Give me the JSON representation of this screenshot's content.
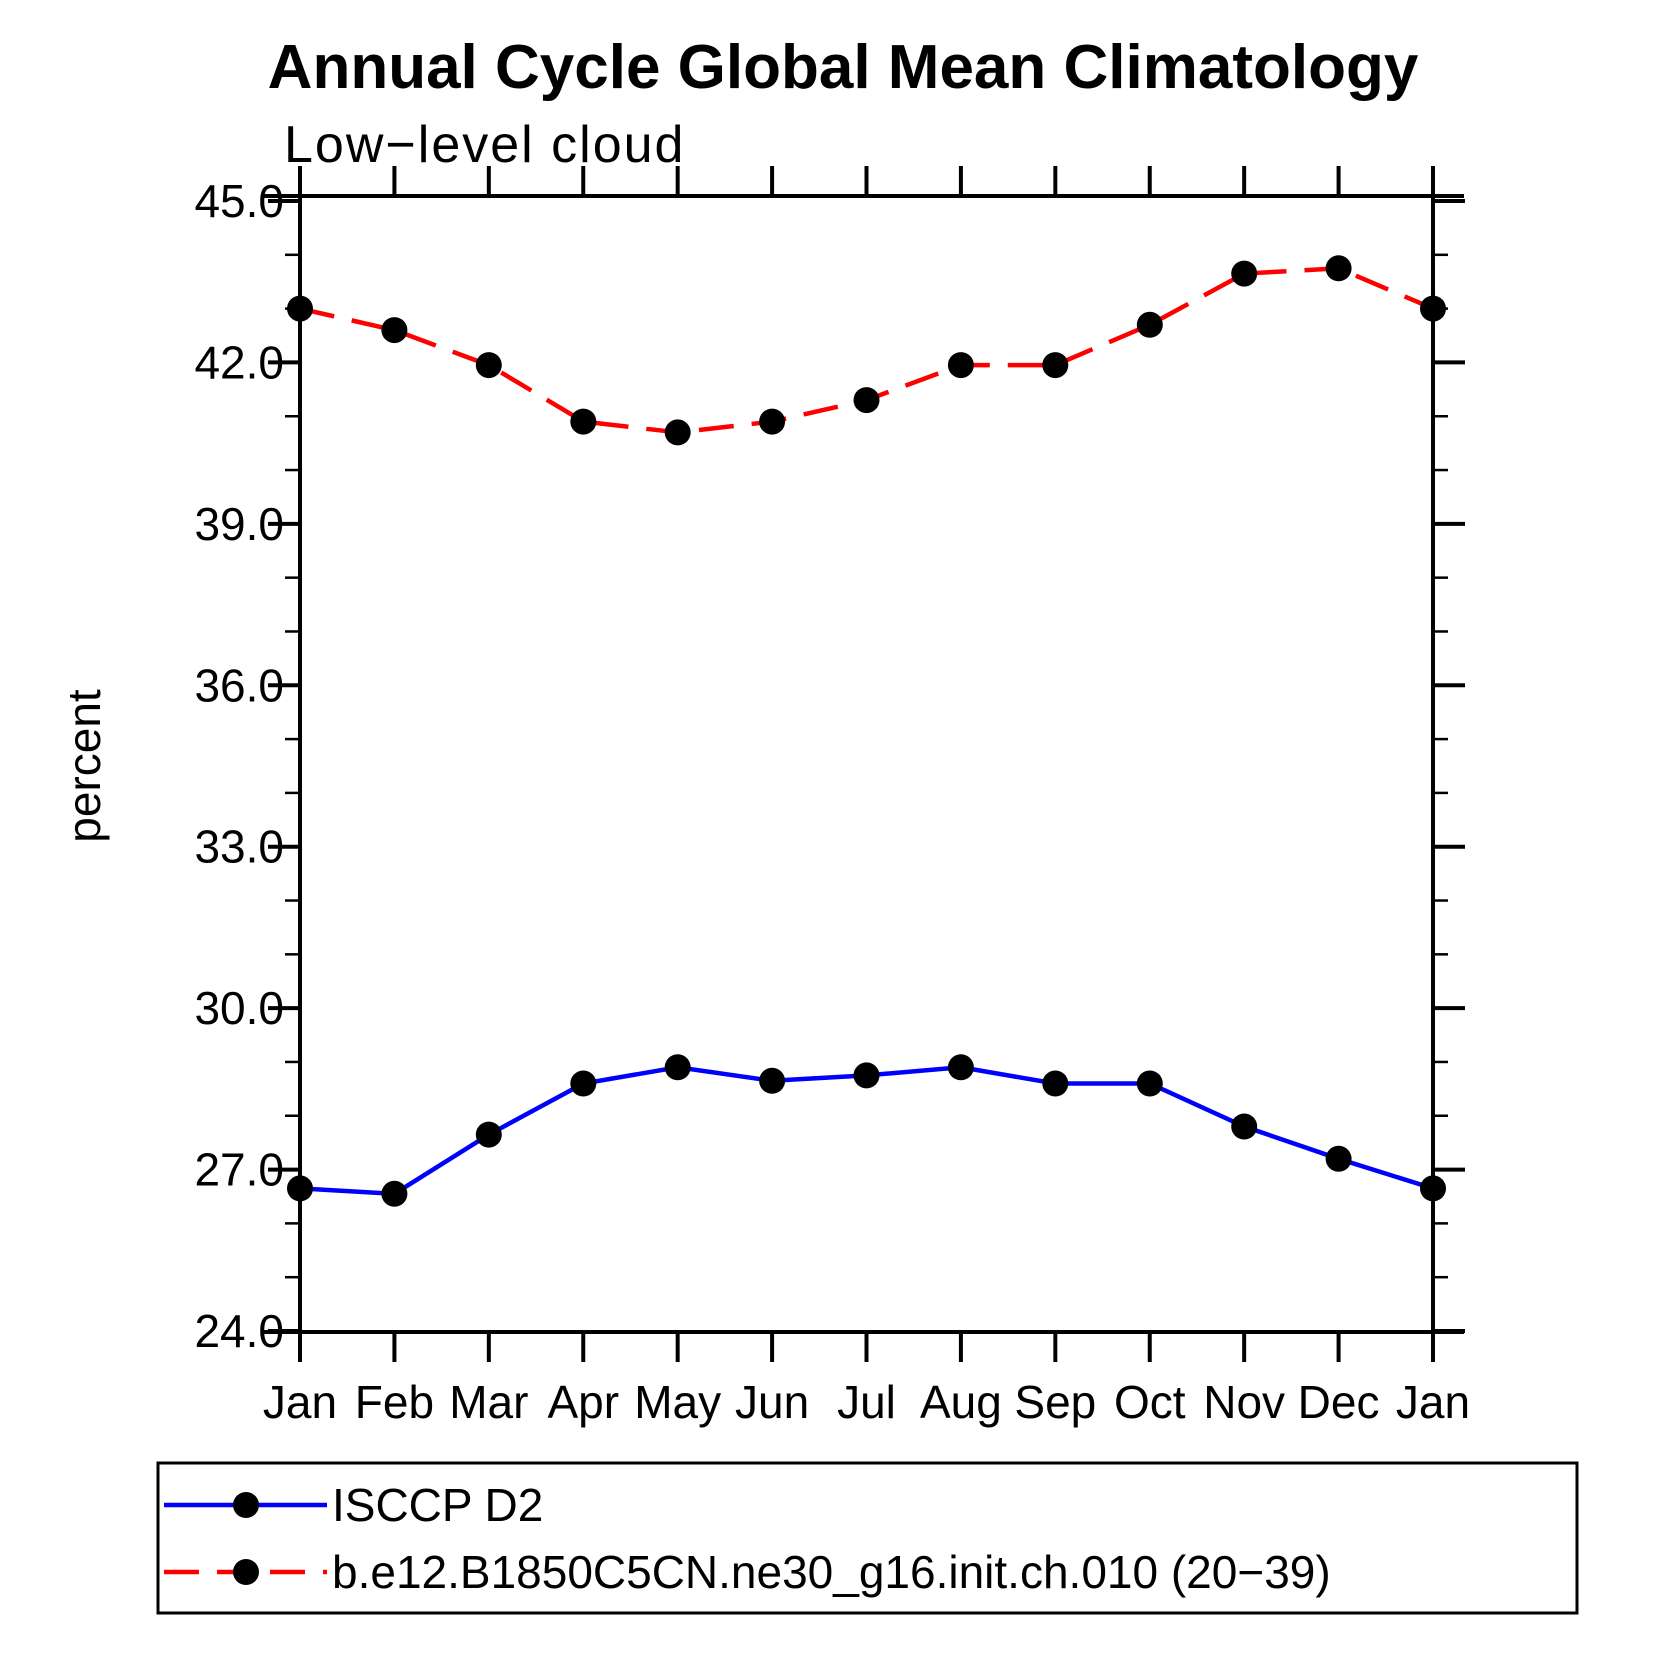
{
  "title": "Annual Cycle Global Mean Climatology",
  "subtitle": "Low−level cloud",
  "y_axis": {
    "label": "percent",
    "tick_labels": [
      "45.0",
      "42.0",
      "39.0",
      "36.0",
      "33.0",
      "30.0",
      "27.0",
      "24.0"
    ],
    "min": 24.0,
    "max": 45.0,
    "major_step": 3.0,
    "minor_step": 1.0
  },
  "x_axis": {
    "tick_labels": [
      "Jan",
      "Feb",
      "Mar",
      "Apr",
      "May",
      "Jun",
      "Jul",
      "Aug",
      "Sep",
      "Oct",
      "Nov",
      "Dec",
      "Jan"
    ]
  },
  "legend": {
    "entries": [
      {
        "label": "ISCCP D2",
        "line_style": "solid",
        "line_color": "#0000ff",
        "marker": "filled-circle",
        "marker_color": "#000000"
      },
      {
        "label": "b.e12.B1850C5CN.ne30_g16.init.ch.010 (20−39)",
        "line_style": "dashed",
        "line_color": "#ff0000",
        "marker": "filled-circle",
        "marker_color": "#000000"
      }
    ]
  },
  "colors": {
    "axis": "#000000",
    "text": "#000000",
    "series1": "#0000ff",
    "series2": "#ff0000",
    "marker": "#000000",
    "background": "#ffffff"
  },
  "chart_data": {
    "type": "line",
    "title": "Annual Cycle Global Mean Climatology",
    "subtitle": "Low−level cloud",
    "xlabel": "",
    "ylabel": "percent",
    "ylim": [
      24.0,
      45.0
    ],
    "y_major_ticks": [
      45.0,
      42.0,
      39.0,
      36.0,
      33.0,
      30.0,
      27.0,
      24.0
    ],
    "y_minor_step": 1.0,
    "grid": false,
    "legend_position": "bottom-box",
    "categories": [
      "Jan",
      "Feb",
      "Mar",
      "Apr",
      "May",
      "Jun",
      "Jul",
      "Aug",
      "Sep",
      "Oct",
      "Nov",
      "Dec",
      "Jan"
    ],
    "series": [
      {
        "name": "ISCCP D2",
        "style": "solid",
        "color": "#0000ff",
        "marker": "filled-circle",
        "marker_color": "#000000",
        "values": [
          26.65,
          26.55,
          27.65,
          28.6,
          28.9,
          28.65,
          28.75,
          28.9,
          28.6,
          28.6,
          27.8,
          27.2,
          26.65
        ]
      },
      {
        "name": "b.e12.B1850C5CN.ne30_g16.init.ch.010 (20−39)",
        "style": "dashed",
        "color": "#ff0000",
        "marker": "filled-circle",
        "marker_color": "#000000",
        "values": [
          43.0,
          42.6,
          41.95,
          40.9,
          40.7,
          40.9,
          41.3,
          41.95,
          41.95,
          42.7,
          43.65,
          43.75,
          43.0
        ]
      }
    ]
  }
}
